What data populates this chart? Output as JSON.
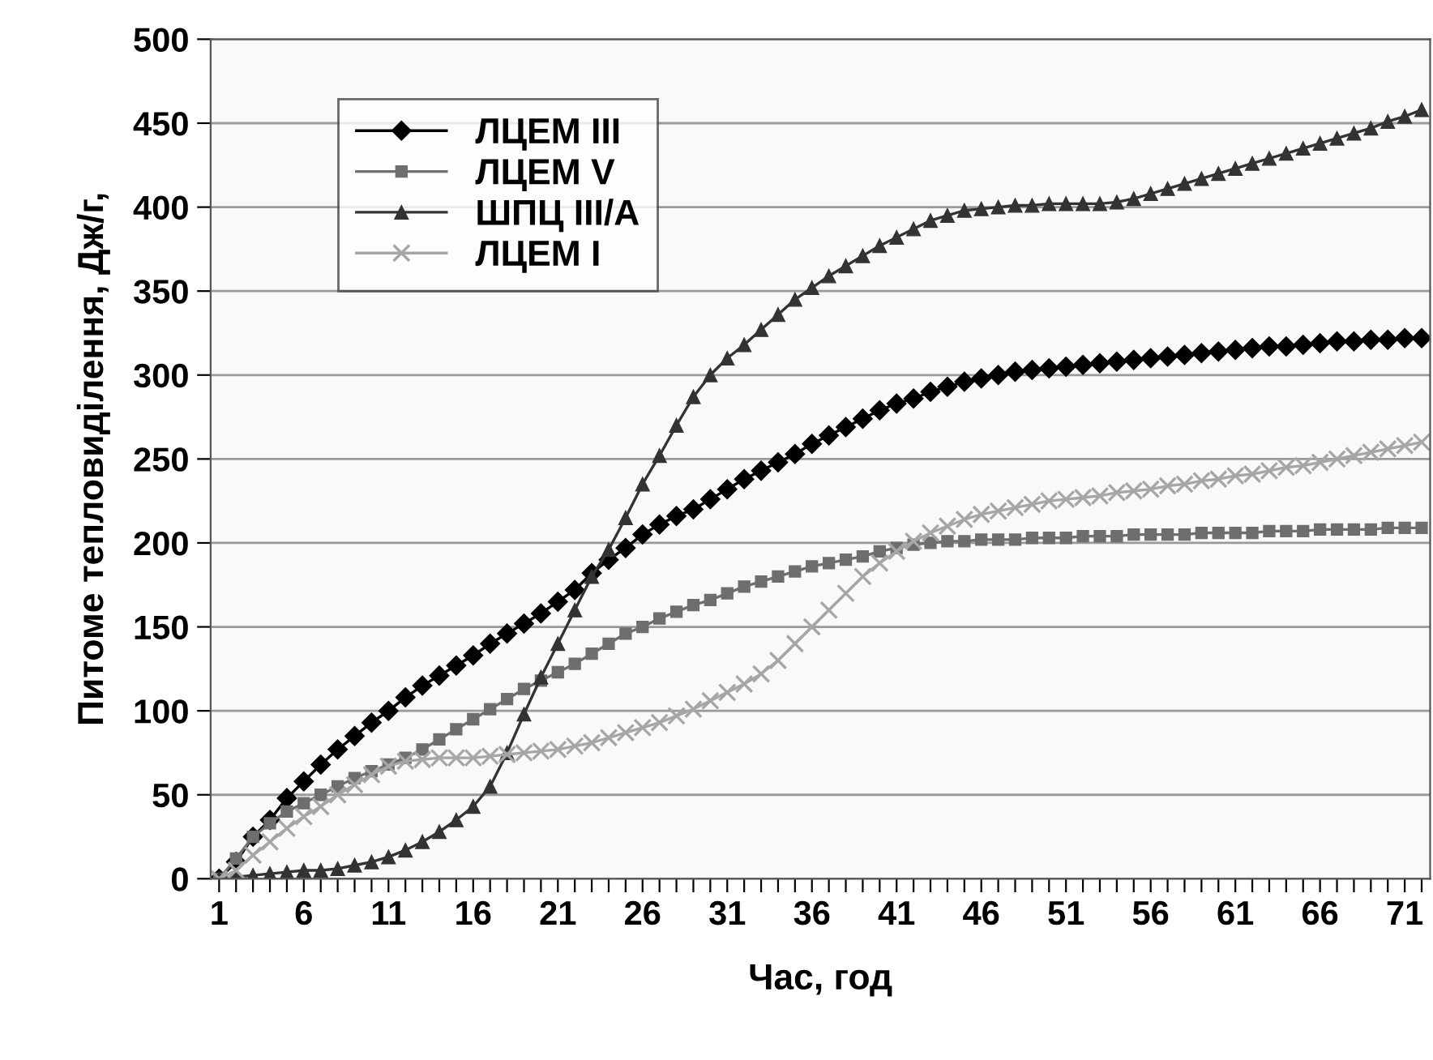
{
  "chart_data": {
    "type": "line",
    "xlabel": "Час, год",
    "ylabel": "Питоме тепловиділення, Дж/г,",
    "categories": [
      "1",
      null,
      null,
      null,
      null,
      "6",
      null,
      null,
      null,
      null,
      "11",
      null,
      null,
      null,
      null,
      "16",
      null,
      null,
      null,
      null,
      "21",
      null,
      null,
      null,
      null,
      "26",
      null,
      null,
      null,
      null,
      "31",
      null,
      null,
      null,
      null,
      "36",
      null,
      null,
      null,
      null,
      "41",
      null,
      null,
      null,
      null,
      "46",
      null,
      null,
      null,
      null,
      "51",
      null,
      null,
      null,
      null,
      "56",
      null,
      null,
      null,
      null,
      "61",
      null,
      null,
      null,
      null,
      "66",
      null,
      null,
      null,
      null,
      "71",
      null
    ],
    "series": [
      {
        "name": "ЛЦЕМ III",
        "color": "#000000",
        "marker": "diamond",
        "values": [
          0,
          10,
          25,
          35,
          48,
          58,
          68,
          77,
          85,
          93,
          100,
          108,
          115,
          121,
          127,
          133,
          140,
          146,
          152,
          158,
          165,
          172,
          182,
          190,
          197,
          205,
          211,
          216,
          220,
          226,
          232,
          238,
          243,
          248,
          253,
          259,
          264,
          269,
          274,
          279,
          283,
          286,
          290,
          293,
          296,
          298,
          300,
          302,
          303,
          304,
          305,
          306,
          307,
          308,
          309,
          310,
          311,
          312,
          313,
          314,
          315,
          316,
          317,
          317,
          318,
          319,
          320,
          320,
          321,
          321,
          322,
          322
        ]
      },
      {
        "name": "ЛЦЕМ V",
        "color": "#6e6e6e",
        "marker": "square",
        "values": [
          0,
          12,
          25,
          33,
          40,
          45,
          50,
          55,
          60,
          64,
          68,
          72,
          77,
          83,
          89,
          95,
          101,
          107,
          113,
          118,
          123,
          128,
          134,
          140,
          146,
          150,
          155,
          159,
          163,
          166,
          170,
          174,
          177,
          180,
          183,
          186,
          188,
          190,
          192,
          195,
          197,
          199,
          200,
          201,
          201,
          202,
          202,
          202,
          203,
          203,
          203,
          204,
          204,
          204,
          205,
          205,
          205,
          205,
          206,
          206,
          206,
          206,
          207,
          207,
          207,
          208,
          208,
          208,
          208,
          209,
          209,
          209
        ]
      },
      {
        "name": "ШПЦ III/A",
        "color": "#333333",
        "marker": "triangle",
        "values": [
          0,
          1,
          2,
          3,
          4,
          5,
          5,
          6,
          8,
          10,
          13,
          17,
          22,
          28,
          35,
          43,
          55,
          75,
          98,
          120,
          140,
          160,
          180,
          196,
          215,
          235,
          252,
          270,
          287,
          300,
          310,
          318,
          327,
          336,
          345,
          352,
          359,
          365,
          371,
          377,
          382,
          387,
          392,
          395,
          398,
          399,
          400,
          401,
          401,
          402,
          402,
          402,
          402,
          403,
          405,
          408,
          411,
          414,
          417,
          420,
          423,
          426,
          429,
          432,
          435,
          438,
          441,
          444,
          447,
          451,
          454,
          458
        ]
      },
      {
        "name": "ЛЦЕМ I",
        "color": "#a6a6a6",
        "marker": "cross",
        "values": [
          0,
          5,
          14,
          22,
          30,
          37,
          43,
          50,
          56,
          62,
          67,
          70,
          71,
          72,
          72,
          72,
          73,
          74,
          75,
          76,
          77,
          79,
          81,
          84,
          87,
          90,
          93,
          97,
          101,
          106,
          111,
          116,
          122,
          130,
          140,
          150,
          160,
          170,
          180,
          188,
          195,
          201,
          206,
          210,
          214,
          217,
          219,
          221,
          223,
          225,
          226,
          227,
          228,
          230,
          231,
          232,
          234,
          235,
          237,
          238,
          240,
          241,
          243,
          245,
          246,
          248,
          250,
          252,
          254,
          256,
          258,
          260
        ]
      }
    ],
    "ylim": [
      0,
      500
    ],
    "yticks": [
      0,
      50,
      100,
      150,
      200,
      250,
      300,
      350,
      400,
      450,
      500
    ],
    "grid": "y",
    "legend": "top left"
  }
}
